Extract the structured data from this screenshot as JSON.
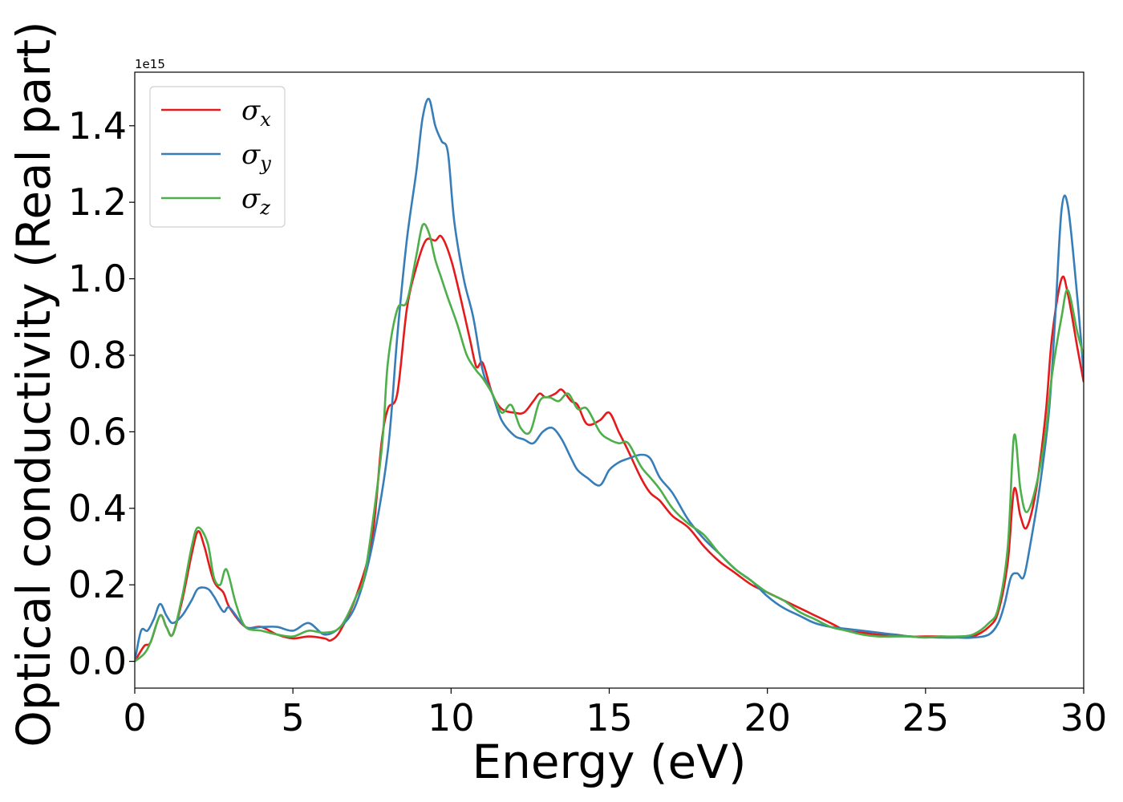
{
  "chart_data": {
    "type": "line",
    "xlabel": "Energy (eV)",
    "ylabel": "Optical conductivity (Real part)",
    "y_offset_label": "1e15",
    "xlim": [
      0,
      30
    ],
    "ylim": [
      -0.07,
      1.54
    ],
    "y_scale_factor": 1000000000000000.0,
    "xticks": [
      0,
      5,
      10,
      15,
      20,
      25,
      30
    ],
    "xtick_labels": [
      "0",
      "5",
      "10",
      "15",
      "20",
      "25",
      "30"
    ],
    "yticks": [
      0.0,
      0.2,
      0.4,
      0.6,
      0.8,
      1.0,
      1.2,
      1.4
    ],
    "ytick_labels": [
      "0.0",
      "0.2",
      "0.4",
      "0.6",
      "0.8",
      "1.0",
      "1.2",
      "1.4"
    ],
    "grid": false,
    "legend_position": "top-left",
    "series": [
      {
        "name": "σx",
        "symbol": "σ",
        "subscript": "x",
        "color": "#e41a1c",
        "x": [
          0,
          0.3,
          0.5,
          0.8,
          1.0,
          1.2,
          1.5,
          1.8,
          2.0,
          2.2,
          2.5,
          2.8,
          3.0,
          3.5,
          4.0,
          4.5,
          5.0,
          5.5,
          6.0,
          6.2,
          6.5,
          7.0,
          7.5,
          7.8,
          8.0,
          8.3,
          8.6,
          8.9,
          9.2,
          9.5,
          9.7,
          10.0,
          10.3,
          10.6,
          10.8,
          11.0,
          11.3,
          11.6,
          12.0,
          12.3,
          12.6,
          12.8,
          13.0,
          13.3,
          13.5,
          13.8,
          14.0,
          14.3,
          14.7,
          15.0,
          15.3,
          15.6,
          16.0,
          16.3,
          16.6,
          17.0,
          17.5,
          18.0,
          18.5,
          19.0,
          19.5,
          20.0,
          20.5,
          21.0,
          21.5,
          22.0,
          22.5,
          23.0,
          23.5,
          24.0,
          24.5,
          25.0,
          25.5,
          26.0,
          26.5,
          27.0,
          27.3,
          27.6,
          27.8,
          28.0,
          28.2,
          28.5,
          28.8,
          29.0,
          29.3,
          29.5,
          29.8,
          30.0
        ],
        "values": [
          0.0,
          0.04,
          0.05,
          0.12,
          0.09,
          0.07,
          0.16,
          0.28,
          0.34,
          0.3,
          0.21,
          0.18,
          0.14,
          0.09,
          0.09,
          0.07,
          0.06,
          0.065,
          0.06,
          0.055,
          0.08,
          0.17,
          0.32,
          0.57,
          0.66,
          0.7,
          0.92,
          1.03,
          1.1,
          1.1,
          1.11,
          1.05,
          0.95,
          0.84,
          0.77,
          0.78,
          0.7,
          0.66,
          0.65,
          0.65,
          0.68,
          0.7,
          0.69,
          0.7,
          0.71,
          0.68,
          0.67,
          0.62,
          0.63,
          0.65,
          0.6,
          0.55,
          0.48,
          0.44,
          0.42,
          0.38,
          0.35,
          0.3,
          0.26,
          0.23,
          0.2,
          0.18,
          0.16,
          0.14,
          0.12,
          0.1,
          0.08,
          0.075,
          0.07,
          0.07,
          0.065,
          0.065,
          0.065,
          0.063,
          0.065,
          0.09,
          0.13,
          0.26,
          0.45,
          0.38,
          0.35,
          0.45,
          0.65,
          0.85,
          1.0,
          0.96,
          0.82,
          0.73
        ]
      },
      {
        "name": "σy",
        "symbol": "σ",
        "subscript": "y",
        "color": "#377eb8",
        "x": [
          0,
          0.2,
          0.4,
          0.6,
          0.8,
          1.0,
          1.2,
          1.5,
          1.8,
          2.0,
          2.3,
          2.5,
          2.8,
          3.0,
          3.5,
          4.0,
          4.5,
          5.0,
          5.5,
          6.0,
          6.5,
          7.0,
          7.5,
          8.0,
          8.3,
          8.6,
          8.9,
          9.1,
          9.3,
          9.5,
          9.7,
          9.9,
          10.1,
          10.4,
          10.7,
          11.0,
          11.3,
          11.6,
          12.0,
          12.3,
          12.6,
          12.9,
          13.2,
          13.5,
          13.8,
          14.0,
          14.3,
          14.7,
          15.0,
          15.3,
          15.6,
          16.0,
          16.3,
          16.6,
          17.0,
          17.5,
          18.0,
          18.5,
          19.0,
          19.5,
          20.0,
          20.5,
          21.0,
          21.5,
          22.0,
          22.5,
          23.0,
          23.5,
          24.0,
          24.5,
          25.0,
          25.5,
          26.0,
          26.5,
          27.0,
          27.3,
          27.5,
          27.7,
          27.9,
          28.1,
          28.3,
          28.6,
          28.9,
          29.1,
          29.3,
          29.5,
          29.8,
          30.0
        ],
        "values": [
          0.0,
          0.08,
          0.08,
          0.11,
          0.15,
          0.12,
          0.1,
          0.12,
          0.16,
          0.19,
          0.19,
          0.17,
          0.13,
          0.14,
          0.09,
          0.09,
          0.09,
          0.08,
          0.1,
          0.07,
          0.09,
          0.15,
          0.3,
          0.55,
          0.85,
          1.1,
          1.28,
          1.42,
          1.47,
          1.4,
          1.36,
          1.33,
          1.15,
          1.0,
          0.9,
          0.76,
          0.7,
          0.63,
          0.59,
          0.58,
          0.57,
          0.6,
          0.61,
          0.58,
          0.53,
          0.5,
          0.48,
          0.46,
          0.5,
          0.52,
          0.53,
          0.54,
          0.53,
          0.48,
          0.44,
          0.37,
          0.32,
          0.28,
          0.24,
          0.21,
          0.17,
          0.14,
          0.12,
          0.1,
          0.09,
          0.085,
          0.08,
          0.075,
          0.07,
          0.065,
          0.063,
          0.062,
          0.062,
          0.062,
          0.07,
          0.1,
          0.15,
          0.22,
          0.23,
          0.22,
          0.3,
          0.45,
          0.65,
          0.9,
          1.18,
          1.19,
          0.95,
          0.75
        ]
      },
      {
        "name": "σz",
        "symbol": "σ",
        "subscript": "z",
        "color": "#4daf4a",
        "x": [
          0,
          0.3,
          0.5,
          0.8,
          1.0,
          1.2,
          1.5,
          1.8,
          2.0,
          2.3,
          2.5,
          2.7,
          2.9,
          3.2,
          3.5,
          4.0,
          4.5,
          5.0,
          5.5,
          6.0,
          6.5,
          7.0,
          7.3,
          7.8,
          8.0,
          8.3,
          8.6,
          8.9,
          9.1,
          9.3,
          9.5,
          9.7,
          9.9,
          10.2,
          10.5,
          10.8,
          11.0,
          11.3,
          11.6,
          11.9,
          12.2,
          12.5,
          12.8,
          13.1,
          13.4,
          13.7,
          14.0,
          14.3,
          14.7,
          15.0,
          15.3,
          15.6,
          16.0,
          16.3,
          16.6,
          17.0,
          17.5,
          18.0,
          18.5,
          19.0,
          19.5,
          20.0,
          20.5,
          21.0,
          21.5,
          22.0,
          22.5,
          23.0,
          23.5,
          24.0,
          24.5,
          25.0,
          25.5,
          26.0,
          26.5,
          27.0,
          27.3,
          27.6,
          27.8,
          28.0,
          28.2,
          28.5,
          28.8,
          29.0,
          29.3,
          29.5,
          29.8,
          30.0
        ],
        "values": [
          0.0,
          0.02,
          0.05,
          0.12,
          0.09,
          0.07,
          0.17,
          0.3,
          0.35,
          0.31,
          0.22,
          0.2,
          0.24,
          0.15,
          0.09,
          0.08,
          0.07,
          0.065,
          0.08,
          0.075,
          0.09,
          0.17,
          0.24,
          0.55,
          0.78,
          0.92,
          0.94,
          1.06,
          1.14,
          1.12,
          1.05,
          1.0,
          0.95,
          0.88,
          0.8,
          0.76,
          0.74,
          0.7,
          0.65,
          0.67,
          0.61,
          0.6,
          0.68,
          0.69,
          0.68,
          0.7,
          0.66,
          0.66,
          0.6,
          0.58,
          0.57,
          0.57,
          0.51,
          0.48,
          0.45,
          0.4,
          0.36,
          0.33,
          0.28,
          0.24,
          0.21,
          0.18,
          0.16,
          0.13,
          0.11,
          0.09,
          0.08,
          0.07,
          0.065,
          0.065,
          0.065,
          0.062,
          0.065,
          0.065,
          0.07,
          0.1,
          0.14,
          0.3,
          0.59,
          0.45,
          0.39,
          0.46,
          0.6,
          0.75,
          0.9,
          0.97,
          0.86,
          0.8
        ]
      }
    ]
  }
}
